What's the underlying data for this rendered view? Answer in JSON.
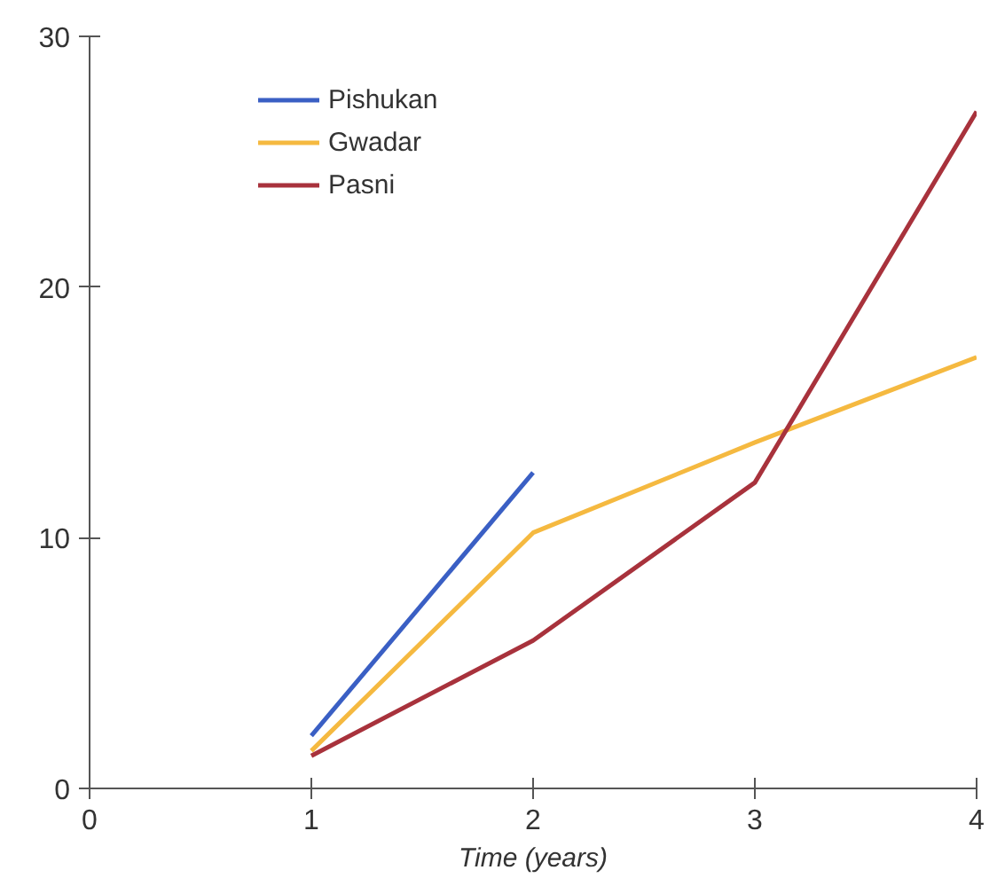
{
  "chart_data": {
    "type": "line",
    "xlabel": "Time (years)",
    "xlim": [
      0,
      4
    ],
    "ylim": [
      0,
      30
    ],
    "xticks": [
      0,
      1,
      2,
      3,
      4
    ],
    "yticks": [
      0,
      10,
      20,
      30
    ],
    "grid": false,
    "legend": "top left",
    "marker": "none",
    "line_style": "solid",
    "series": [
      {
        "name": "Pishukan",
        "color": "#3a5fc4",
        "x": [
          1,
          2
        ],
        "values": [
          2.1,
          12.6
        ]
      },
      {
        "name": "Gwadar",
        "color": "#f5b940",
        "x": [
          1,
          2,
          3,
          4
        ],
        "values": [
          1.5,
          10.2,
          13.8,
          17.2
        ]
      },
      {
        "name": "Pasni",
        "color": "#a8323c",
        "x": [
          1,
          2,
          3,
          4
        ],
        "values": [
          1.3,
          5.9,
          12.2,
          27
        ]
      }
    ]
  }
}
